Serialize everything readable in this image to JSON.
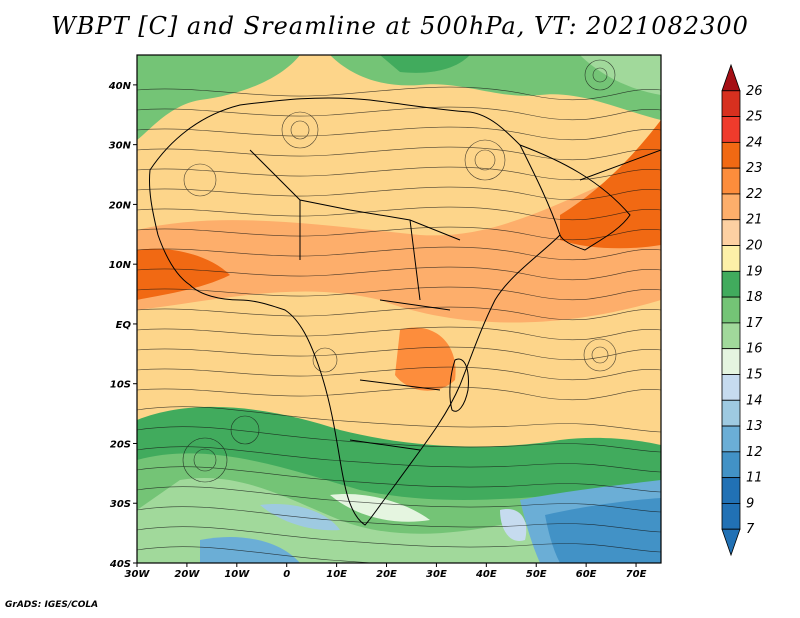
{
  "title": "WBPT [C] and Sreamline at 500hPa, VT: 2021082300",
  "footer": "GrADS: IGES/COLA",
  "map": {
    "lon_ticks": [
      "30W",
      "20W",
      "10W",
      "0",
      "10E",
      "20E",
      "30E",
      "40E",
      "50E",
      "60E",
      "70E"
    ],
    "lat_ticks": [
      "40N",
      "30N",
      "20N",
      "10N",
      "EQ",
      "10S",
      "20S",
      "30S",
      "40S"
    ],
    "lon_range": [
      -30,
      75
    ],
    "lat_range": [
      -40,
      45
    ]
  },
  "colorbar": {
    "labels": [
      "26",
      "25",
      "24",
      "23",
      "22",
      "21",
      "20",
      "19",
      "18",
      "17",
      "16",
      "15",
      "14",
      "13",
      "12",
      "11",
      "9",
      "7"
    ],
    "colors": [
      "#a50f15",
      "#d7301f",
      "#ef3b2c",
      "#f16913",
      "#fd8d3c",
      "#fdae6b",
      "#fdd0a2",
      "#fdf0a8",
      "#41ab5d",
      "#74c476",
      "#a1d99b",
      "#e5f5e0",
      "#c6dbef",
      "#9ecae1",
      "#6baed6",
      "#4292c6",
      "#2171b5",
      "#2171b5"
    ]
  }
}
